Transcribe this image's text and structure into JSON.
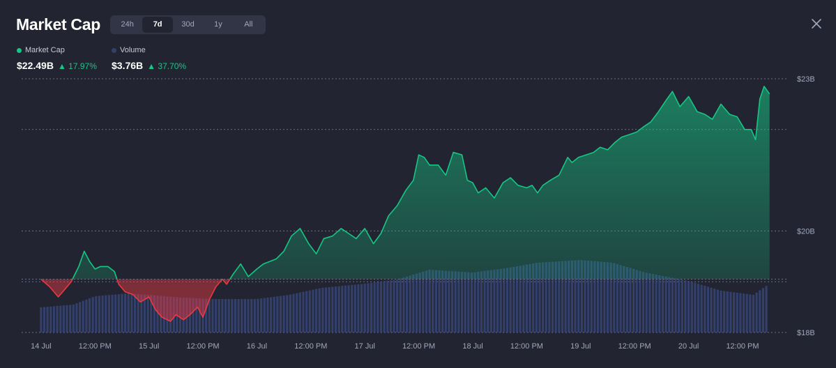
{
  "header": {
    "title": "Market Cap",
    "range_tabs": [
      "24h",
      "7d",
      "30d",
      "1y",
      "All"
    ],
    "active_tab": "7d"
  },
  "legend": [
    {
      "name": "Market Cap",
      "value": "$22.49B",
      "change": "17.97%",
      "color": "#16c784"
    },
    {
      "name": "Volume",
      "value": "$3.76B",
      "change": "37.70%",
      "color": "#334067"
    }
  ],
  "colors": {
    "up": "#16c784",
    "down": "#ea3943",
    "volume": "#3a4a80",
    "background": "#222531",
    "grid": "#6b7185"
  },
  "chart_data": {
    "type": "line",
    "x_tick_labels": [
      "14 Jul",
      "12:00 PM",
      "15 Jul",
      "12:00 PM",
      "16 Jul",
      "12:00 PM",
      "17 Jul",
      "12:00 PM",
      "18 Jul",
      "12:00 PM",
      "19 Jul",
      "12:00 PM",
      "20 Jul",
      "12:00 PM"
    ],
    "y_tick_labels": [
      "$23B",
      "$20B",
      "$18B"
    ],
    "ylim": [
      18,
      23
    ],
    "baseline": 19.05,
    "x_range_days": [
      -0.18,
      6.92
    ],
    "series": [
      {
        "name": "Market Cap",
        "x": [
          0.0,
          0.08,
          0.16,
          0.2,
          0.28,
          0.35,
          0.4,
          0.45,
          0.5,
          0.55,
          0.62,
          0.68,
          0.72,
          0.78,
          0.85,
          0.92,
          1.0,
          1.06,
          1.12,
          1.2,
          1.25,
          1.32,
          1.38,
          1.45,
          1.5,
          1.56,
          1.62,
          1.68,
          1.72,
          1.78,
          1.85,
          1.92,
          2.0,
          2.06,
          2.12,
          2.18,
          2.25,
          2.32,
          2.4,
          2.48,
          2.55,
          2.62,
          2.7,
          2.78,
          2.85,
          2.92,
          3.0,
          3.08,
          3.15,
          3.22,
          3.3,
          3.38,
          3.45,
          3.5,
          3.55,
          3.6,
          3.68,
          3.75,
          3.82,
          3.9,
          3.95,
          4.0,
          4.05,
          4.12,
          4.2,
          4.28,
          4.35,
          4.42,
          4.5,
          4.55,
          4.6,
          4.65,
          4.72,
          4.8,
          4.88,
          4.92,
          4.98,
          5.05,
          5.12,
          5.18,
          5.25,
          5.32,
          5.38,
          5.45,
          5.52,
          5.58,
          5.65,
          5.72,
          5.8,
          5.85,
          5.92,
          6.0,
          6.08,
          6.15,
          6.22,
          6.3,
          6.38,
          6.45,
          6.52,
          6.58,
          6.62,
          6.66,
          6.7,
          6.75
        ],
        "y": [
          19.05,
          18.9,
          18.7,
          18.8,
          19.0,
          19.3,
          19.6,
          19.4,
          19.25,
          19.3,
          19.3,
          19.2,
          18.95,
          18.8,
          18.75,
          18.6,
          18.7,
          18.45,
          18.3,
          18.22,
          18.35,
          18.25,
          18.35,
          18.5,
          18.3,
          18.65,
          18.9,
          19.05,
          18.95,
          19.15,
          19.35,
          19.1,
          19.25,
          19.35,
          19.4,
          19.45,
          19.6,
          19.9,
          20.05,
          19.75,
          19.55,
          19.85,
          19.9,
          20.05,
          19.95,
          19.85,
          20.05,
          19.75,
          19.95,
          20.3,
          20.5,
          20.8,
          21.0,
          21.5,
          21.45,
          21.3,
          21.3,
          21.1,
          21.55,
          21.5,
          21.0,
          20.95,
          20.75,
          20.85,
          20.65,
          20.95,
          21.05,
          20.9,
          20.85,
          20.9,
          20.75,
          20.9,
          21.0,
          21.1,
          21.45,
          21.35,
          21.45,
          21.5,
          21.55,
          21.65,
          21.6,
          21.75,
          21.85,
          21.9,
          21.95,
          22.05,
          22.15,
          22.35,
          22.6,
          22.75,
          22.45,
          22.65,
          22.35,
          22.3,
          22.2,
          22.5,
          22.3,
          22.25,
          22.0,
          22.0,
          21.8,
          22.6,
          22.85,
          22.7
        ]
      },
      {
        "name": "Volume",
        "x": [
          0.0,
          0.3,
          0.5,
          0.8,
          1.0,
          1.3,
          1.6,
          2.0,
          2.3,
          2.6,
          3.0,
          3.3,
          3.6,
          4.0,
          4.3,
          4.6,
          5.0,
          5.3,
          5.6,
          6.0,
          6.3,
          6.6,
          6.75
        ],
        "y": [
          0.18,
          0.2,
          0.26,
          0.28,
          0.27,
          0.25,
          0.24,
          0.24,
          0.27,
          0.32,
          0.35,
          0.38,
          0.45,
          0.43,
          0.46,
          0.5,
          0.52,
          0.5,
          0.43,
          0.37,
          0.3,
          0.27,
          0.35
        ]
      }
    ],
    "grid": true
  }
}
